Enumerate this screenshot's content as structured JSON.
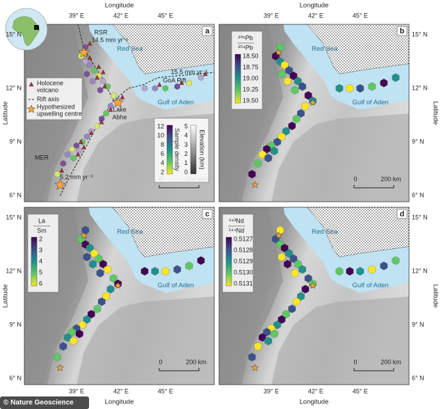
{
  "axes": {
    "x_title": "Longitude",
    "y_title": "Latitude",
    "x_ticks": [
      "39° E",
      "42° E",
      "45° E"
    ],
    "y_ticks": [
      "15° N",
      "12° N",
      "9° N",
      "6° N"
    ]
  },
  "panels": [
    {
      "letter": "a",
      "labels": {
        "rsr": "RSR",
        "rsr_rate": "14.5 mm yr⁻¹",
        "red_sea": "Red Sea",
        "goa_rate": "15.5 mm yr⁻¹",
        "goa_rift": "GoA Rift",
        "gulf": "Gulf of Aden",
        "lake": [
          "Lake",
          "Abhe"
        ],
        "mer": "MER",
        "mer_rate": "5.2 mm yr⁻¹"
      },
      "legend": [
        [
          "Holocene",
          "volcano"
        ],
        [
          "Rift axis"
        ],
        [
          "Hypothesized",
          "upwelling centre"
        ]
      ],
      "density": {
        "title": "Sample density",
        "ticks": [
          "12",
          "10",
          "8",
          "6",
          "4",
          "2"
        ]
      },
      "elevation": {
        "title": "Elevation (km)",
        "ticks": [
          "5",
          "4",
          "3",
          "2",
          "1",
          "0"
        ]
      },
      "scale": [
        "0",
        "200 km"
      ]
    },
    {
      "letter": "b",
      "labels": {
        "red_sea": "Red Sea",
        "gulf": "Gulf of Aden"
      },
      "colorbar": {
        "numerator": "²⁰⁶Pb",
        "denominator": "²⁰⁴Pb",
        "ticks": [
          "18.50",
          "18.75",
          "19.00",
          "19.25",
          "19.50"
        ]
      },
      "scale": [
        "0",
        "200 km"
      ]
    },
    {
      "letter": "c",
      "labels": {
        "red_sea": "Red Sea",
        "gulf": "Gulf of Aden"
      },
      "colorbar": {
        "numerator": "La",
        "denominator": "Sm",
        "ticks": [
          "2",
          "3",
          "4",
          "5",
          "6"
        ]
      },
      "scale": [
        "0",
        "200 km"
      ]
    },
    {
      "letter": "d",
      "labels": {
        "red_sea": "Red Sea",
        "gulf": "Gulf of Aden"
      },
      "colorbar": {
        "numerator": "¹⁴³Nd",
        "denominator": "¹⁴⁴Nd",
        "ticks": [
          "0.5127",
          "0.5128",
          "0.5129",
          "0.5130",
          "0.5131"
        ]
      },
      "scale": [
        "0",
        "200 km"
      ]
    }
  ],
  "credit": "© Nature Geoscience"
}
